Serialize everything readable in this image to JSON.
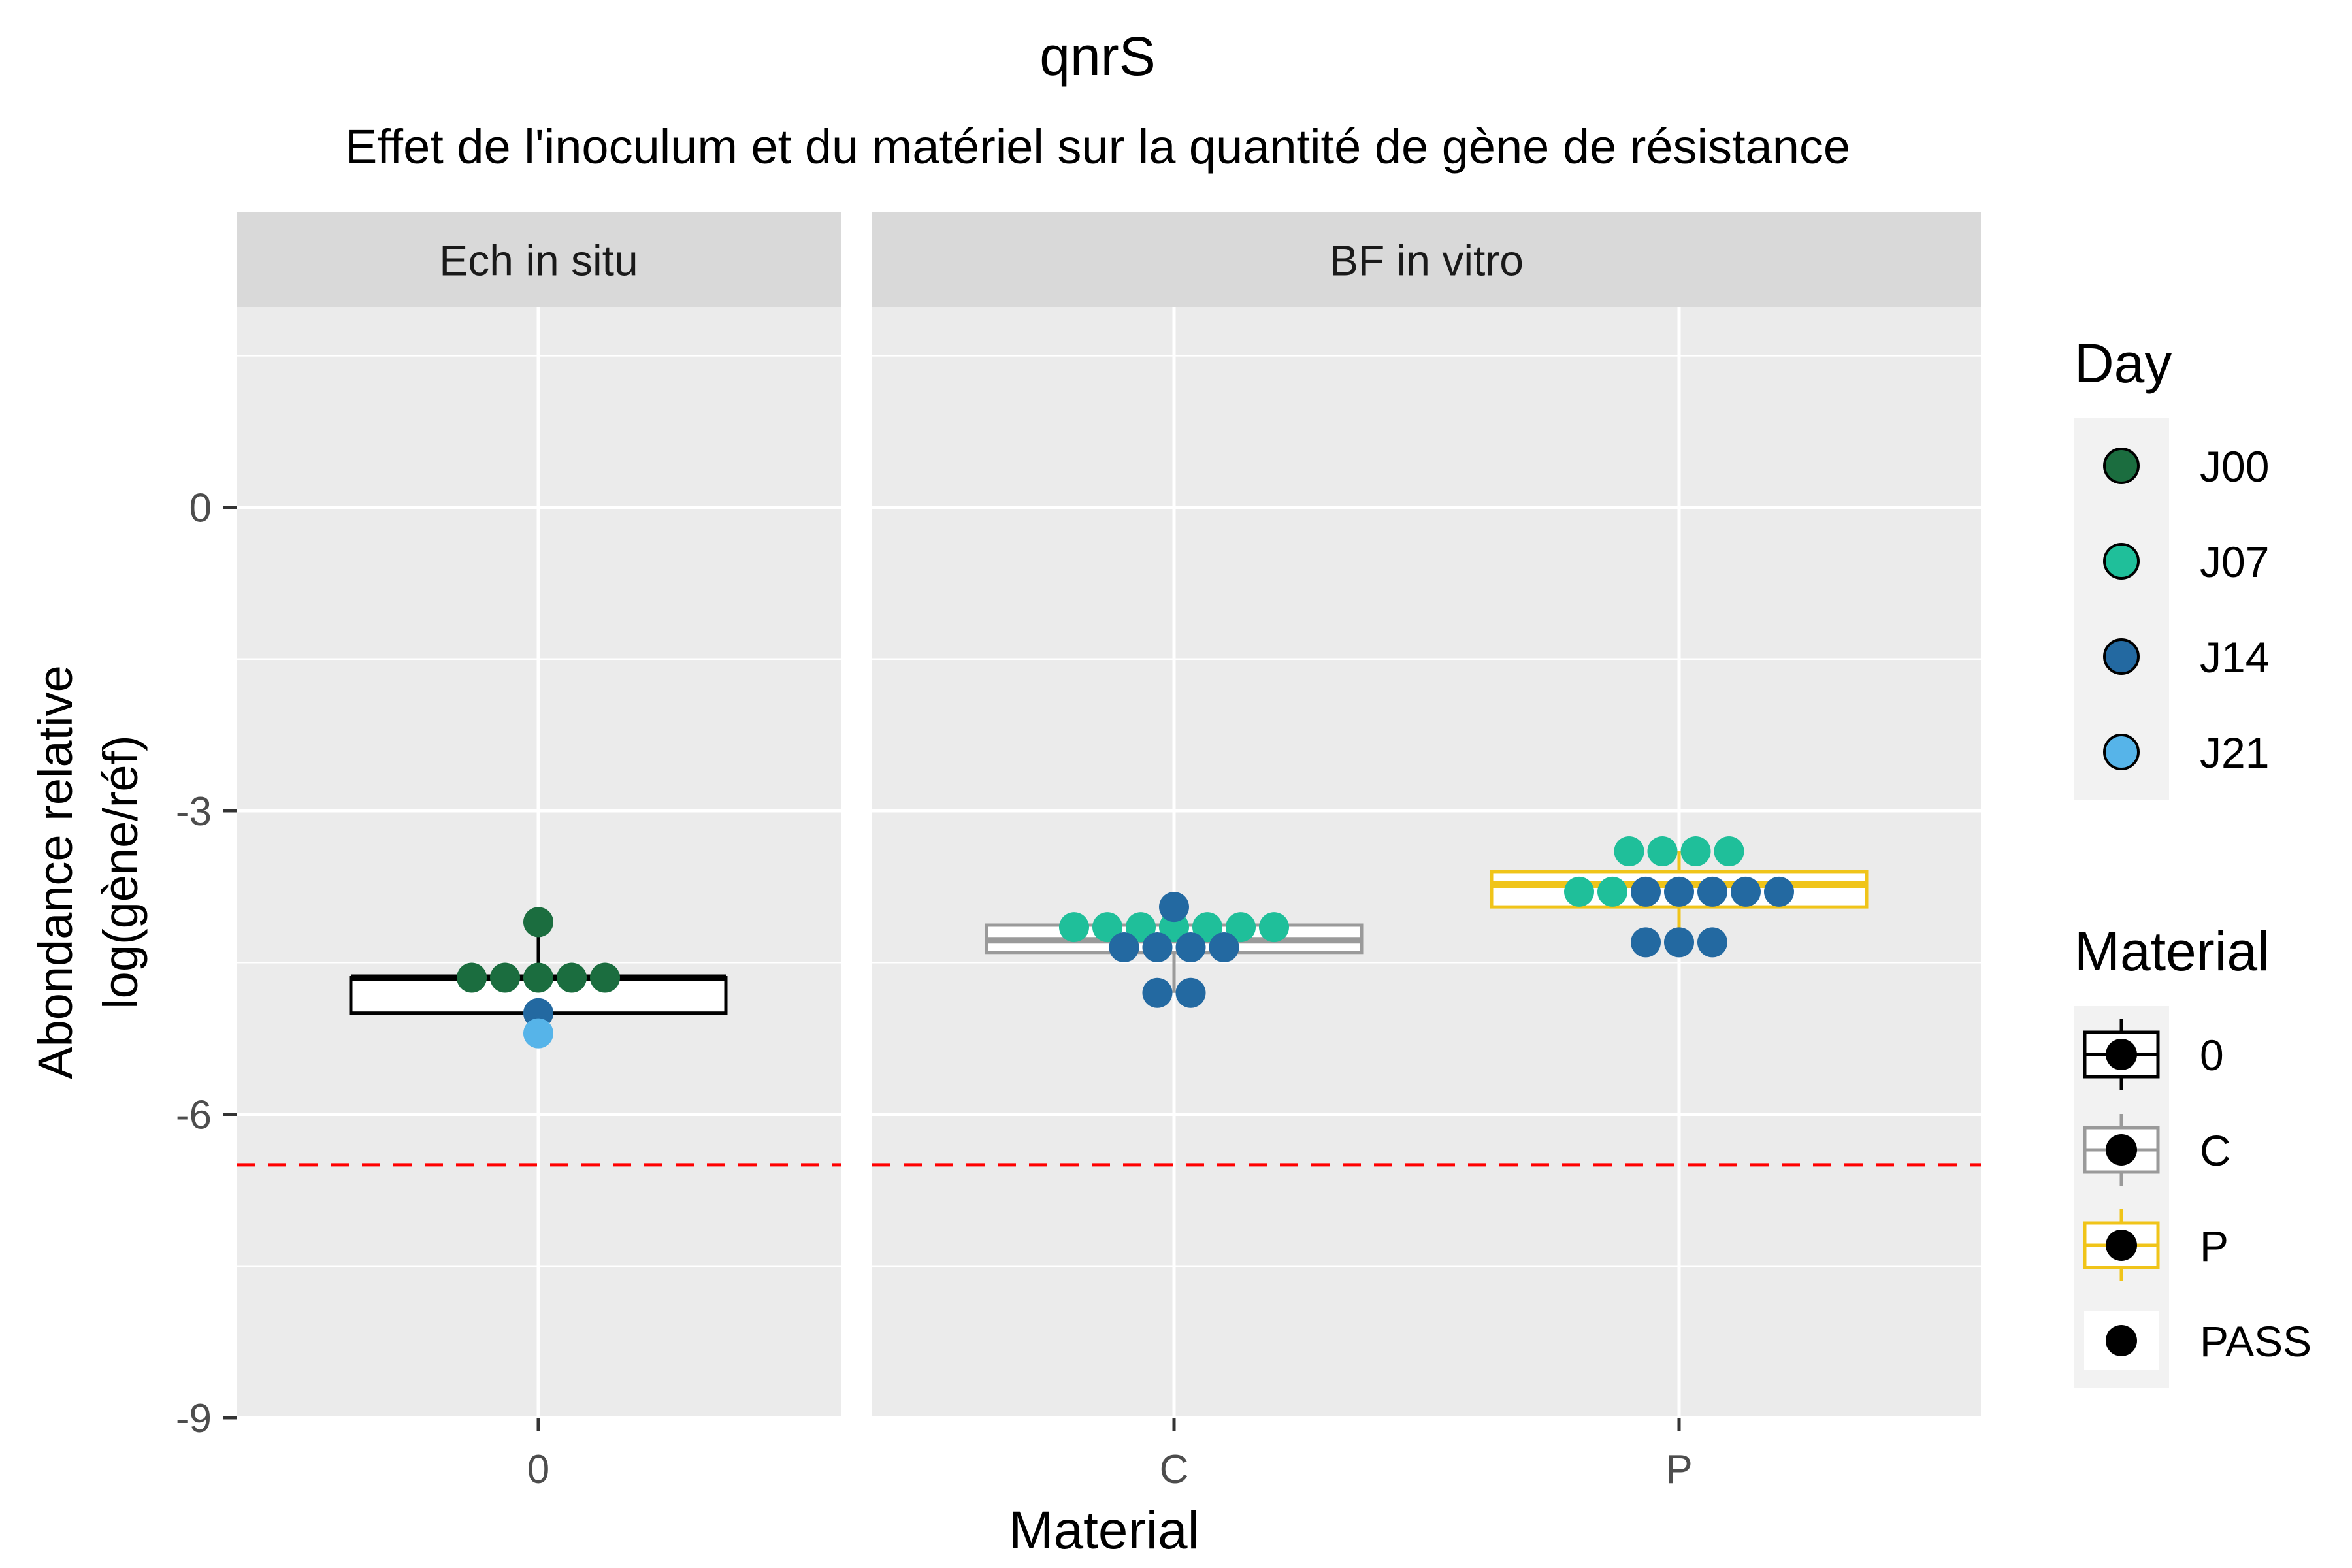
{
  "chart_data": {
    "type": "boxplot",
    "title": "qnrS",
    "subtitle": "Effet de l'inoculum et du matériel sur la quantité de gène de résistance",
    "xlabel": "Material",
    "ylabel_lines": [
      "Abondance relative",
      "log(gène/réf)"
    ],
    "ylim": [
      -9,
      1.98
    ],
    "yticks": [
      0,
      -3,
      -6,
      -9
    ],
    "ytick_labels": [
      "0",
      "-3",
      "-6",
      "-9"
    ],
    "threshold": {
      "value": -6.5,
      "color": "#ff0000",
      "style": "dashed"
    },
    "colors": {
      "panel_bg": "#ebebeb",
      "strip_bg": "#d9d9d9",
      "grid": "#ffffff",
      "J00": "#1b6d3f",
      "J07": "#1fbf9a",
      "J14": "#2369a1",
      "J21": "#56b4e9",
      "material_0": "#000000",
      "material_C": "#9a9a9a",
      "material_P": "#f0c419"
    },
    "panels": [
      {
        "strip": "Ech in situ",
        "groups": [
          {
            "category": "0",
            "material": "0",
            "box": {
              "q1": -5.0,
              "median": -4.65,
              "q3": -4.65,
              "whisker_low": -5.0,
              "whisker_high": -4.1
            },
            "points": [
              {
                "y": -4.1,
                "day": "J00"
              },
              {
                "y": -4.65,
                "day": "J00"
              },
              {
                "y": -4.65,
                "day": "J00"
              },
              {
                "y": -4.65,
                "day": "J00"
              },
              {
                "y": -4.65,
                "day": "J00"
              },
              {
                "y": -4.65,
                "day": "J00"
              },
              {
                "y": -5.0,
                "day": "J14"
              },
              {
                "y": -5.2,
                "day": "J21"
              }
            ]
          }
        ]
      },
      {
        "strip": "BF in vitro",
        "groups": [
          {
            "category": "C",
            "material": "C",
            "box": {
              "q1": -4.4,
              "median": -4.28,
              "q3": -4.13,
              "whisker_low": -4.8,
              "whisker_high": -3.95
            },
            "points": [
              {
                "y": -4.15,
                "day": "J07"
              },
              {
                "y": -4.15,
                "day": "J07"
              },
              {
                "y": -4.15,
                "day": "J07"
              },
              {
                "y": -4.15,
                "day": "J07"
              },
              {
                "y": -4.15,
                "day": "J07"
              },
              {
                "y": -4.15,
                "day": "J07"
              },
              {
                "y": -4.15,
                "day": "J07"
              },
              {
                "y": -3.95,
                "day": "J14"
              },
              {
                "y": -4.35,
                "day": "J14"
              },
              {
                "y": -4.35,
                "day": "J14"
              },
              {
                "y": -4.35,
                "day": "J14"
              },
              {
                "y": -4.35,
                "day": "J14"
              },
              {
                "y": -4.8,
                "day": "J14"
              },
              {
                "y": -4.8,
                "day": "J14"
              }
            ]
          },
          {
            "category": "P",
            "material": "P",
            "box": {
              "q1": -3.95,
              "median": -3.73,
              "q3": -3.6,
              "whisker_low": -4.3,
              "whisker_high": -3.4
            },
            "points": [
              {
                "y": -3.4,
                "day": "J07"
              },
              {
                "y": -3.4,
                "day": "J07"
              },
              {
                "y": -3.4,
                "day": "J07"
              },
              {
                "y": -3.4,
                "day": "J07"
              },
              {
                "y": -3.8,
                "day": "J07"
              },
              {
                "y": -3.8,
                "day": "J07"
              },
              {
                "y": -3.8,
                "day": "J14"
              },
              {
                "y": -3.8,
                "day": "J14"
              },
              {
                "y": -3.8,
                "day": "J14"
              },
              {
                "y": -3.8,
                "day": "J14"
              },
              {
                "y": -3.8,
                "day": "J14"
              },
              {
                "y": -4.3,
                "day": "J14"
              },
              {
                "y": -4.3,
                "day": "J14"
              },
              {
                "y": -4.3,
                "day": "J14"
              }
            ]
          }
        ]
      }
    ],
    "legend_day": {
      "title": "Day",
      "items": [
        "J00",
        "J07",
        "J14",
        "J21"
      ]
    },
    "legend_material": {
      "title": "Material",
      "items": [
        "0",
        "C",
        "P",
        "PASS"
      ]
    }
  }
}
